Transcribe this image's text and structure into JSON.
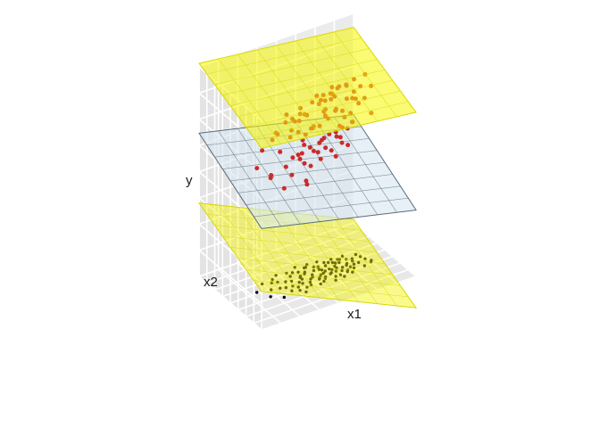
{
  "chart_data": {
    "type": "scatter",
    "subtype": "3d-scatter-with-regression-planes",
    "axes": {
      "x": "x1",
      "y": "x2",
      "z": "y"
    },
    "grid": true,
    "colors": {
      "panel_back": "#ebebeb",
      "panel_side": "#e3e3e3",
      "floor": "#e8e8e8",
      "grid": "#ffffff",
      "fitted_plane": "#d6e6f0",
      "fitted_plane_edge": "#5a6b78",
      "ci_plane": "#f5f500",
      "ci_plane_edge": "#d8d800",
      "data_points": "#cc2a2a",
      "projected_points": "#000000"
    },
    "planes": [
      {
        "name": "upper-band",
        "z": [
          2.6,
          2.35,
          3.05,
          2.8
        ]
      },
      {
        "name": "fitted",
        "z": [
          1.45,
          0.95,
          2.05,
          1.55
        ]
      },
      {
        "name": "lower-band",
        "z": [
          0.55,
          -0.45,
          1.05,
          0.05
        ]
      }
    ],
    "points": [
      [
        0.18,
        0.52,
        1.78
      ],
      [
        0.22,
        0.4,
        1.7
      ],
      [
        0.25,
        0.61,
        1.91
      ],
      [
        0.28,
        0.33,
        1.56
      ],
      [
        0.31,
        0.47,
        1.95
      ],
      [
        0.33,
        0.56,
        2.12
      ],
      [
        0.35,
        0.38,
        1.66
      ],
      [
        0.36,
        0.66,
        2.04
      ],
      [
        0.38,
        0.44,
        1.84
      ],
      [
        0.4,
        0.51,
        2.16
      ],
      [
        0.41,
        0.3,
        1.59
      ],
      [
        0.42,
        0.58,
        1.99
      ],
      [
        0.43,
        0.46,
        2.31
      ],
      [
        0.44,
        0.36,
        1.47
      ],
      [
        0.45,
        0.62,
        2.2
      ],
      [
        0.46,
        0.49,
        1.8
      ],
      [
        0.47,
        0.54,
        2.4
      ],
      [
        0.48,
        0.41,
        1.93
      ],
      [
        0.49,
        0.68,
        2.09
      ],
      [
        0.5,
        0.45,
        1.62
      ],
      [
        0.51,
        0.57,
        2.26
      ],
      [
        0.52,
        0.34,
        1.79
      ],
      [
        0.53,
        0.5,
        2.47
      ],
      [
        0.54,
        0.63,
        1.9
      ],
      [
        0.55,
        0.43,
        2.17
      ],
      [
        0.56,
        0.55,
        1.71
      ],
      [
        0.57,
        0.39,
        2.33
      ],
      [
        0.58,
        0.6,
        2.01
      ],
      [
        0.59,
        0.47,
        2.55
      ],
      [
        0.6,
        0.52,
        1.86
      ],
      [
        0.61,
        0.32,
        2.12
      ],
      [
        0.62,
        0.65,
        2.38
      ],
      [
        0.63,
        0.44,
        1.75
      ],
      [
        0.64,
        0.56,
        2.24
      ],
      [
        0.65,
        0.48,
        2.61
      ],
      [
        0.66,
        0.37,
        1.97
      ],
      [
        0.67,
        0.59,
        2.06
      ],
      [
        0.68,
        0.51,
        2.43
      ],
      [
        0.69,
        0.42,
        1.83
      ],
      [
        0.7,
        0.62,
        2.29
      ],
      [
        0.71,
        0.46,
        2.0
      ],
      [
        0.72,
        0.54,
        2.52
      ],
      [
        0.73,
        0.35,
        2.15
      ],
      [
        0.74,
        0.58,
        1.91
      ],
      [
        0.75,
        0.49,
        2.36
      ],
      [
        0.76,
        0.4,
        2.7
      ],
      [
        0.77,
        0.61,
        2.08
      ],
      [
        0.78,
        0.45,
        2.47
      ],
      [
        0.8,
        0.53,
        1.96
      ],
      [
        0.82,
        0.38,
        2.4
      ],
      [
        0.84,
        0.57,
        2.23
      ],
      [
        0.86,
        0.47,
        2.64
      ],
      [
        0.88,
        0.42,
        2.11
      ],
      [
        0.3,
        0.58,
        1.52
      ],
      [
        0.37,
        0.53,
        2.28
      ],
      [
        0.48,
        0.6,
        1.68
      ],
      [
        0.55,
        0.36,
        2.05
      ],
      [
        0.6,
        0.58,
        1.64
      ],
      [
        0.66,
        0.44,
        2.32
      ],
      [
        0.72,
        0.4,
        1.79
      ],
      [
        0.44,
        0.43,
        2.05
      ],
      [
        0.52,
        0.47,
        2.13
      ],
      [
        0.58,
        0.41,
        1.85
      ],
      [
        0.64,
        0.5,
        1.93
      ],
      [
        0.7,
        0.55,
        2.18
      ],
      [
        0.47,
        0.37,
        2.24
      ],
      [
        0.53,
        0.63,
        1.76
      ],
      [
        0.61,
        0.49,
        2.44
      ],
      [
        0.67,
        0.33,
        2.28
      ],
      [
        0.74,
        0.47,
        2.57
      ],
      [
        0.39,
        0.35,
        1.88
      ],
      [
        0.42,
        0.64,
        2.27
      ],
      [
        0.5,
        0.55,
        1.58
      ],
      [
        0.57,
        0.46,
        2.5
      ],
      [
        0.63,
        0.37,
        1.72
      ],
      [
        0.69,
        0.57,
        2.41
      ],
      [
        0.75,
        0.43,
        2.2
      ],
      [
        0.79,
        0.5,
        2.33
      ],
      [
        0.34,
        0.45,
        1.73
      ],
      [
        0.46,
        0.52,
        2.34
      ],
      [
        0.54,
        0.41,
        1.95
      ],
      [
        0.59,
        0.54,
        2.37
      ],
      [
        0.65,
        0.61,
        2.16
      ],
      [
        0.71,
        0.38,
        2.05
      ],
      [
        0.77,
        0.55,
        2.5
      ],
      [
        0.26,
        0.49,
        1.64
      ],
      [
        0.32,
        0.62,
        2.0
      ],
      [
        0.4,
        0.4,
        2.22
      ],
      [
        0.56,
        0.66,
        2.14
      ],
      [
        0.62,
        0.43,
        2.58
      ],
      [
        0.68,
        0.48,
        1.88
      ],
      [
        0.73,
        0.59,
        2.45
      ],
      [
        0.81,
        0.45,
        2.28
      ],
      [
        0.85,
        0.52,
        2.44
      ],
      [
        0.87,
        0.4,
        2.52
      ]
    ]
  }
}
